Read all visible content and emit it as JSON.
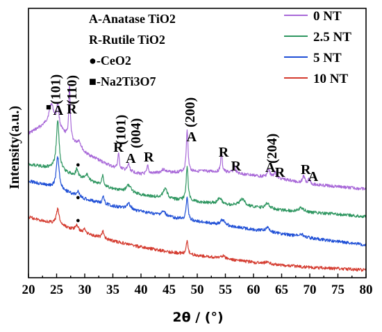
{
  "chart_data": {
    "type": "line",
    "title": "",
    "xlabel": "2θ / (°)",
    "ylabel": "Intensity(a.u.)",
    "xlim": [
      20,
      80
    ],
    "x_ticks": [
      "20",
      "25",
      "30",
      "35",
      "40",
      "45",
      "50",
      "55",
      "60",
      "65",
      "70",
      "75",
      "80"
    ],
    "y_ticks_shown": false,
    "legend_position": "top-right",
    "series": [
      {
        "name": "0 NT",
        "color": "#a868d8",
        "baseline": [
          [
            20,
            192
          ],
          [
            24,
            175
          ],
          [
            30,
            220
          ],
          [
            35,
            240
          ],
          [
            40,
            250
          ],
          [
            45,
            248
          ],
          [
            50,
            246
          ],
          [
            55,
            247
          ],
          [
            60,
            252
          ],
          [
            65,
            257
          ],
          [
            70,
            265
          ],
          [
            75,
            268
          ],
          [
            80,
            272
          ]
        ],
        "peaks": [
          [
            24.1,
            25,
            1.0
          ],
          [
            25.2,
            32,
            0.5
          ],
          [
            27.3,
            78,
            0.3
          ],
          [
            29.0,
            10,
            0.8
          ],
          [
            36.0,
            22,
            0.3
          ],
          [
            37.8,
            10,
            0.4
          ],
          [
            41.2,
            12,
            0.3
          ],
          [
            44.0,
            5,
            1.0
          ],
          [
            48.2,
            62,
            0.35
          ],
          [
            54.3,
            30,
            0.3
          ],
          [
            56.6,
            12,
            0.35
          ],
          [
            62.7,
            10,
            0.6
          ],
          [
            63.8,
            8,
            0.5
          ],
          [
            68.9,
            10,
            0.5
          ],
          [
            69.9,
            8,
            0.5
          ]
        ]
      },
      {
        "name": "2.5 NT",
        "color": "#2e9660",
        "baseline": [
          [
            20,
            236
          ],
          [
            25,
            243
          ],
          [
            30,
            258
          ],
          [
            35,
            272
          ],
          [
            40,
            280
          ],
          [
            45,
            286
          ],
          [
            50,
            290
          ],
          [
            55,
            294
          ],
          [
            60,
            298
          ],
          [
            65,
            302
          ],
          [
            70,
            305
          ],
          [
            75,
            308
          ],
          [
            80,
            311
          ]
        ],
        "peaks": [
          [
            25.2,
            70,
            0.6
          ],
          [
            28.6,
            10,
            0.5
          ],
          [
            30.4,
            8,
            0.8
          ],
          [
            33.2,
            16,
            0.4
          ],
          [
            37.8,
            10,
            1.1
          ],
          [
            44.3,
            14,
            0.9
          ],
          [
            48.2,
            50,
            0.4
          ],
          [
            54.0,
            8,
            0.9
          ],
          [
            58.0,
            10,
            1.2
          ],
          [
            62.5,
            8,
            0.9
          ],
          [
            68.5,
            6,
            1.0
          ]
        ]
      },
      {
        "name": "5 NT",
        "color": "#1f4fd6",
        "baseline": [
          [
            20,
            260
          ],
          [
            25,
            270
          ],
          [
            30,
            286
          ],
          [
            35,
            296
          ],
          [
            40,
            304
          ],
          [
            45,
            312
          ],
          [
            50,
            318
          ],
          [
            55,
            324
          ],
          [
            60,
            330
          ],
          [
            65,
            336
          ],
          [
            70,
            342
          ],
          [
            75,
            347
          ],
          [
            80,
            352
          ]
        ],
        "peaks": [
          [
            25.2,
            45,
            0.6
          ],
          [
            28.8,
            8,
            0.5
          ],
          [
            33.3,
            10,
            0.4
          ],
          [
            37.8,
            8,
            0.9
          ],
          [
            44.0,
            6,
            1.0
          ],
          [
            48.2,
            32,
            0.4
          ],
          [
            54.5,
            8,
            0.9
          ],
          [
            62.5,
            6,
            0.9
          ],
          [
            68.5,
            4,
            1.0
          ]
        ]
      },
      {
        "name": "10 NT",
        "color": "#d43a2e",
        "baseline": [
          [
            20,
            312
          ],
          [
            25,
            322
          ],
          [
            30,
            335
          ],
          [
            35,
            346
          ],
          [
            40,
            355
          ],
          [
            45,
            362
          ],
          [
            50,
            367
          ],
          [
            55,
            372
          ],
          [
            60,
            377
          ],
          [
            65,
            381
          ],
          [
            70,
            384
          ],
          [
            75,
            386
          ],
          [
            80,
            388
          ]
        ],
        "peaks": [
          [
            25.2,
            22,
            0.6
          ],
          [
            28.6,
            8,
            0.6
          ],
          [
            30.0,
            6,
            0.5
          ],
          [
            33.2,
            10,
            0.4
          ],
          [
            48.2,
            18,
            0.4
          ],
          [
            54.5,
            4,
            0.9
          ],
          [
            62.5,
            3,
            0.9
          ]
        ]
      }
    ],
    "legend_key": [
      "A-Anatase TiO2",
      "R-Rutile TiO2",
      "●-CeO2",
      "■-Na2Ti3O7"
    ],
    "annotations": [
      {
        "text": "■",
        "x": 23.1,
        "y": 158,
        "size": 13,
        "anchor": "start",
        "rotate": false
      },
      {
        "text": "A",
        "x": 24.4,
        "y": 165,
        "size": 20,
        "anchor": "start",
        "rotate": false
      },
      {
        "text": "R",
        "x": 26.8,
        "y": 163,
        "size": 20,
        "anchor": "start",
        "rotate": false
      },
      {
        "text": "(101)",
        "x": 25.6,
        "y": 150,
        "size": 20,
        "anchor": "start",
        "rotate": true
      },
      {
        "text": "(110)",
        "x": 28.5,
        "y": 150,
        "size": 20,
        "anchor": "start",
        "rotate": true
      },
      {
        "text": "R",
        "x": 35.1,
        "y": 218,
        "size": 20,
        "anchor": "start",
        "rotate": false
      },
      {
        "text": "A",
        "x": 37.3,
        "y": 234,
        "size": 20,
        "anchor": "start",
        "rotate": false
      },
      {
        "text": "R",
        "x": 40.5,
        "y": 232,
        "size": 20,
        "anchor": "start",
        "rotate": false
      },
      {
        "text": "(101)",
        "x": 37.2,
        "y": 208,
        "size": 20,
        "anchor": "start",
        "rotate": true
      },
      {
        "text": "(004)",
        "x": 39.9,
        "y": 213,
        "size": 20,
        "anchor": "start",
        "rotate": true
      },
      {
        "text": "(200)",
        "x": 49.5,
        "y": 183,
        "size": 20,
        "anchor": "start",
        "rotate": true
      },
      {
        "text": "A",
        "x": 48.1,
        "y": 203,
        "size": 20,
        "anchor": "start",
        "rotate": false
      },
      {
        "text": "R",
        "x": 53.8,
        "y": 225,
        "size": 20,
        "anchor": "start",
        "rotate": false
      },
      {
        "text": "R",
        "x": 56.0,
        "y": 245,
        "size": 20,
        "anchor": "start",
        "rotate": false
      },
      {
        "text": "A",
        "x": 62.1,
        "y": 247,
        "size": 20,
        "anchor": "start",
        "rotate": false
      },
      {
        "text": "R",
        "x": 63.8,
        "y": 254,
        "size": 20,
        "anchor": "start",
        "rotate": false
      },
      {
        "text": "(204)",
        "x": 64.1,
        "y": 235,
        "size": 20,
        "anchor": "start",
        "rotate": true
      },
      {
        "text": "R",
        "x": 68.4,
        "y": 250,
        "size": 20,
        "anchor": "start",
        "rotate": false
      },
      {
        "text": "A",
        "x": 69.7,
        "y": 260,
        "size": 20,
        "anchor": "start",
        "rotate": false
      },
      {
        "text": "●",
        "x": 28.4,
        "y": 240,
        "size": 11,
        "anchor": "start",
        "rotate": false
      },
      {
        "text": "●",
        "x": 28.4,
        "y": 287,
        "size": 11,
        "anchor": "start",
        "rotate": false
      },
      {
        "text": "●",
        "x": 28.4,
        "y": 320,
        "size": 11,
        "anchor": "start",
        "rotate": false
      }
    ]
  }
}
